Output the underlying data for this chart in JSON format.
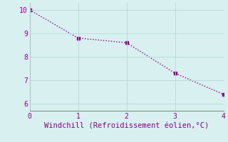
{
  "x": [
    0,
    1,
    2,
    3,
    4
  ],
  "y": [
    10.0,
    8.8,
    8.6,
    7.3,
    6.4
  ],
  "line_color": "#8B008B",
  "marker": "s",
  "markersize": 2.5,
  "linestyle": "dotted",
  "linewidth": 1.0,
  "xlabel": "Windchill (Refroidissement éolien,°C)",
  "xlabel_fontsize": 7.5,
  "xlabel_color": "#8B008B",
  "background_color": "#d8f0f0",
  "xlim": [
    0,
    4
  ],
  "ylim": [
    5.7,
    10.3
  ],
  "xticks": [
    0,
    1,
    2,
    3,
    4
  ],
  "yticks": [
    6,
    7,
    8,
    9,
    10
  ],
  "tick_fontsize": 7,
  "tick_color": "#8B008B",
  "grid_color": "#b8d8d8",
  "grid_linewidth": 0.6,
  "spine_color": "#8B8B8B"
}
